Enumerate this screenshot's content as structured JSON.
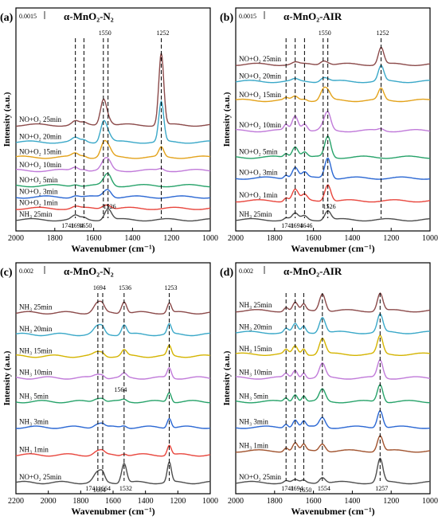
{
  "chart_data": [
    {
      "panel": "(a)",
      "type": "line",
      "title": "α-MnO₂-N₂",
      "scale_label": "0.0015",
      "xlabel": "Wavenubmer (cm⁻¹)",
      "ylabel": "Intensity (a.u.)",
      "xlim": [
        2000,
        1000
      ],
      "xticks": [
        2000,
        1800,
        1600,
        1400,
        1200,
        1000
      ],
      "series": [
        {
          "name": "NH₃ 25min",
          "color": "#4d4d4d",
          "baseline": 0.0
        },
        {
          "name": "NO+O₂ 1min",
          "color": "#e8453c",
          "baseline": 0.06
        },
        {
          "name": "NO+O₂ 3min",
          "color": "#2a67d3",
          "baseline": 0.12
        },
        {
          "name": "NO+O₂ 5min",
          "color": "#26a269",
          "baseline": 0.18
        },
        {
          "name": "NO+O₂ 10min",
          "color": "#c07ad9",
          "baseline": 0.26
        },
        {
          "name": "NO+O₂ 15min",
          "color": "#e3a21a",
          "baseline": 0.33
        },
        {
          "name": "NO+O₂ 20min",
          "color": "#3aa8c8",
          "baseline": 0.41
        },
        {
          "name": "NO+O₂ 25min",
          "color": "#8b4a4a",
          "baseline": 0.5
        }
      ],
      "peaks": [
        {
          "x": 1526,
          "heights": [
            0.06,
            0.02,
            0.04,
            0.06,
            0.05,
            0.05,
            0.04,
            0.03
          ],
          "width": 25
        },
        {
          "x": 1550,
          "heights": [
            0,
            0.01,
            0.01,
            0.01,
            0.03,
            0.06,
            0.1,
            0.13
          ],
          "width": 22
        },
        {
          "x": 1252,
          "heights": [
            0,
            0,
            0,
            0,
            0.01,
            0.05,
            0.21,
            0.38
          ],
          "width": 18
        },
        {
          "x": 1694,
          "heights": [
            0.02,
            0.01,
            0.01,
            0.01,
            0.02,
            0.02,
            0.02,
            0.02
          ],
          "width": 25
        },
        {
          "x": 1650,
          "heights": [
            0.01,
            0,
            0,
            0,
            0.01,
            0.01,
            0.01,
            0.01
          ],
          "width": 20
        }
      ],
      "annotations": [
        "1252",
        "1550",
        "1741",
        "1694",
        "1650",
        "1526"
      ]
    },
    {
      "panel": "(b)",
      "type": "line",
      "title": "α-MnO₂-AIR",
      "scale_label": "0.0015",
      "xlabel": "Wavenubmer (cm⁻¹)",
      "ylabel": "Intensity (a.u.)",
      "xlim": [
        2000,
        1000
      ],
      "xticks": [
        2000,
        1800,
        1600,
        1400,
        1200,
        1000
      ],
      "series": [
        {
          "name": "NH₃ 25min",
          "color": "#4d4d4d",
          "baseline": 0.0
        },
        {
          "name": "NO+O₂ 1min",
          "color": "#e8453c",
          "baseline": 0.1
        },
        {
          "name": "NO+O₂ 3min",
          "color": "#2a67d3",
          "baseline": 0.22
        },
        {
          "name": "NO+O₂ 5min",
          "color": "#26a269",
          "baseline": 0.33
        },
        {
          "name": "NO+O₂ 10min",
          "color": "#c07ad9",
          "baseline": 0.47
        },
        {
          "name": "NO+O₂ 15min",
          "color": "#e3a21a",
          "baseline": 0.63
        },
        {
          "name": "NO+O₂ 20min",
          "color": "#3aa8c8",
          "baseline": 0.73
        },
        {
          "name": "NO+O₂ 25min",
          "color": "#8b4a4a",
          "baseline": 0.82
        }
      ],
      "peaks": [
        {
          "x": 1526,
          "heights": [
            0.05,
            0.09,
            0.11,
            0.11,
            0.09,
            0.04,
            0.01,
            0.01
          ],
          "width": 22
        },
        {
          "x": 1550,
          "heights": [
            0,
            0,
            0,
            0,
            0.02,
            0.05,
            0.02,
            0.02
          ],
          "width": 22
        },
        {
          "x": 1252,
          "heights": [
            0,
            0,
            0,
            0,
            0.01,
            0.06,
            0.08,
            0.09
          ],
          "width": 20
        },
        {
          "x": 1694,
          "heights": [
            0.03,
            0.06,
            0.06,
            0.06,
            0.08,
            0.02,
            0.01,
            0.01
          ],
          "width": 22
        },
        {
          "x": 1646,
          "heights": [
            0.02,
            0.03,
            0.03,
            0.03,
            0.04,
            0.01,
            0,
            0
          ],
          "width": 20
        },
        {
          "x": 1741,
          "heights": [
            0.01,
            0.02,
            0.02,
            0.02,
            0.03,
            0.01,
            0,
            0
          ],
          "width": 15
        }
      ],
      "annotations": [
        "1252",
        "1550",
        "1741",
        "1694",
        "1646",
        "1526"
      ]
    },
    {
      "panel": "(c)",
      "type": "line",
      "title": "α-MnO₂-N₂",
      "scale_label": "0.002",
      "xlabel": "Wavenubmer (cm⁻¹)",
      "ylabel": "Intensity (a.u.)",
      "xlim": [
        2200,
        1000
      ],
      "xticks": [
        2200,
        2000,
        1800,
        1600,
        1400,
        1200,
        1000
      ],
      "series": [
        {
          "name": "NO+O₂ 25min",
          "color": "#4d4d4d",
          "baseline": 0.0
        },
        {
          "name": "NH₃ 1min",
          "color": "#e8453c",
          "baseline": 0.14
        },
        {
          "name": "NH₃ 3min",
          "color": "#2a67d3",
          "baseline": 0.28
        },
        {
          "name": "NH₃ 5min",
          "color": "#26a269",
          "baseline": 0.41
        },
        {
          "name": "NH₃ 10min",
          "color": "#c07ad9",
          "baseline": 0.53
        },
        {
          "name": "NH₃ 15min",
          "color": "#d4b400",
          "baseline": 0.64
        },
        {
          "name": "NH₃ 20min",
          "color": "#3aa8c8",
          "baseline": 0.75
        },
        {
          "name": "NH₃ 25min",
          "color": "#8b4a4a",
          "baseline": 0.86
        }
      ],
      "peaks": [
        {
          "x": 1253,
          "heights": [
            0.1,
            0.05,
            0.05,
            0.05,
            0.05,
            0.05,
            0.05,
            0.05
          ],
          "width": 18
        },
        {
          "x": 1532,
          "heights": [
            0.1,
            0.01,
            0.01,
            0.01,
            0.02,
            0.03,
            0.05,
            0.06
          ],
          "width": 22
        },
        {
          "x": 1694,
          "heights": [
            0.05,
            0.02,
            0.02,
            0.02,
            0.02,
            0.02,
            0.04,
            0.05
          ],
          "width": 35
        },
        {
          "x": 1664,
          "heights": [
            0.03,
            0.01,
            0.01,
            0.01,
            0.01,
            0.01,
            0.02,
            0.02
          ],
          "width": 20
        }
      ],
      "annotations": [
        "1694",
        "1536",
        "1253",
        "1564",
        "1741",
        "1694",
        "1664",
        "1532"
      ]
    },
    {
      "panel": "(d)",
      "type": "line",
      "title": "α-MnO₂-AIR",
      "scale_label": "0.002",
      "xlabel": "Wavenubmer (cm⁻¹)",
      "ylabel": "Intensity (a.u.)",
      "xlim": [
        2000,
        1000
      ],
      "xticks": [
        2000,
        1800,
        1600,
        1400,
        1200,
        1000
      ],
      "series": [
        {
          "name": "NO+O₂ 25min",
          "color": "#4d4d4d",
          "baseline": 0.0
        },
        {
          "name": "NH₃ 1min",
          "color": "#a0522d",
          "baseline": 0.16
        },
        {
          "name": "NH₃ 3min",
          "color": "#2a67d3",
          "baseline": 0.28
        },
        {
          "name": "NH₃ 5min",
          "color": "#26a269",
          "baseline": 0.41
        },
        {
          "name": "NH₃ 10min",
          "color": "#c07ad9",
          "baseline": 0.53
        },
        {
          "name": "NH₃ 15min",
          "color": "#d4b400",
          "baseline": 0.65
        },
        {
          "name": "NH₃ 20min",
          "color": "#3aa8c8",
          "baseline": 0.76
        },
        {
          "name": "NH₃ 25min",
          "color": "#8b4a4a",
          "baseline": 0.87
        }
      ],
      "peaks": [
        {
          "x": 1257,
          "heights": [
            0.12,
            0.08,
            0.09,
            0.09,
            0.09,
            0.09,
            0.09,
            0.09
          ],
          "width": 20
        },
        {
          "x": 1554,
          "heights": [
            0.03,
            0.04,
            0.05,
            0.06,
            0.07,
            0.08,
            0.08,
            0.09
          ],
          "width": 22
        },
        {
          "x": 1694,
          "heights": [
            0.01,
            0.04,
            0.04,
            0.04,
            0.04,
            0.04,
            0.04,
            0.04
          ],
          "width": 18
        },
        {
          "x": 1650,
          "heights": [
            0.01,
            0.03,
            0.03,
            0.03,
            0.03,
            0.03,
            0.03,
            0.03
          ],
          "width": 15
        },
        {
          "x": 1741,
          "heights": [
            0.01,
            0.02,
            0.02,
            0.02,
            0.02,
            0.02,
            0.02,
            0.02
          ],
          "width": 15
        }
      ],
      "annotations": [
        "1741",
        "1694",
        "1650",
        "1554",
        "1257"
      ]
    }
  ]
}
